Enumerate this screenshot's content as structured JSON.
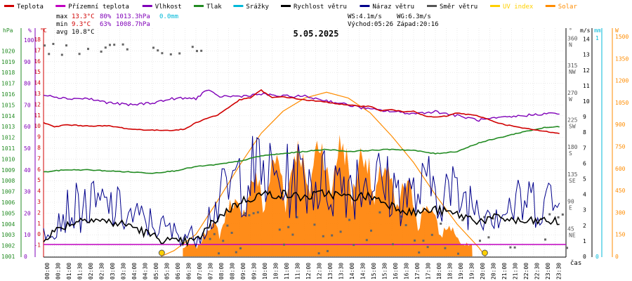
{
  "legend": [
    {
      "label": "Teplota",
      "color": "#d00000"
    },
    {
      "label": "Přízemní teplota",
      "color": "#c000c0"
    },
    {
      "label": "Vlhkost",
      "color": "#7f00b8"
    },
    {
      "label": "Tlak",
      "color": "#228b22"
    },
    {
      "label": "Srážky",
      "color": "#00b8d8"
    },
    {
      "label": "Rychlost větru",
      "color": "#000000"
    },
    {
      "label": "Náraz větru",
      "color": "#00008b"
    },
    {
      "label": "Směr větru",
      "color": "#555555"
    },
    {
      "label": "UV index",
      "color": "#ffd000"
    },
    {
      "label": "Solar",
      "color": "#ff8c00"
    }
  ],
  "stats": {
    "max_label": "max",
    "max_temp": "13.3°C",
    "max_hum": "80%",
    "max_press": "1013.3hPa",
    "precip": "0.0mm",
    "min_label": "min",
    "min_temp": "9.3°C",
    "min_hum": "63%",
    "min_press": "1008.7hPa",
    "avg_label": "avg",
    "avg_temp": "10.8°C",
    "ws": "WS:4.1m/s",
    "wg": "WG:6.3m/s",
    "sunrise": "Východ:05:26",
    "sunset": "Západ:20:16"
  },
  "date": "5.05.2025",
  "colors": {
    "temp": "#d00000",
    "ground": "#c000c0",
    "hum": "#7f00b8",
    "press": "#228b22",
    "rain": "#00b8d8",
    "wind": "#000000",
    "gust": "#00008b",
    "dir": "#555555",
    "uv": "#ffd000",
    "solar": "#ff8c00",
    "fill": "#ff8000"
  },
  "chart_data": {
    "type": "line",
    "title": "5.05.2025",
    "xlabel": "čas",
    "x_ticks": [
      "00:00",
      "00:30",
      "01:00",
      "01:30",
      "02:00",
      "02:30",
      "03:00",
      "03:30",
      "04:00",
      "04:30",
      "05:00",
      "05:30",
      "06:00",
      "06:30",
      "07:00",
      "07:30",
      "08:00",
      "08:30",
      "09:00",
      "09:30",
      "10:00",
      "10:30",
      "11:00",
      "11:30",
      "12:00",
      "12:30",
      "13:00",
      "13:30",
      "14:00",
      "14:30",
      "15:00",
      "15:30",
      "16:00",
      "16:30",
      "17:00",
      "17:30",
      "18:00",
      "18:30",
      "19:00",
      "19:30",
      "20:00",
      "20:30",
      "21:00",
      "21:30",
      "22:00",
      "22:30",
      "23:00",
      "23:30"
    ],
    "axes": {
      "hpa": {
        "unit": "hPa",
        "ticks": [
          "1020",
          "1019",
          "1018",
          "1017",
          "1016",
          "1015",
          "1014",
          "1013",
          "1012",
          "1011",
          "1010",
          "1009",
          "1008",
          "1007",
          "1006",
          "1005",
          "1004",
          "1003",
          "1002",
          "1001"
        ]
      },
      "pct": {
        "unit": "%",
        "ticks": [
          "100",
          "90",
          "80",
          "70",
          "60",
          "50",
          "40",
          "30",
          "20",
          "10",
          "0"
        ]
      },
      "degc": {
        "unit": "°C",
        "ticks": [
          "18",
          "17",
          "16",
          "15",
          "14",
          "13",
          "12",
          "11",
          "10",
          "9",
          "8",
          "7",
          "6",
          "5",
          "4",
          "3",
          "2",
          "1",
          "0",
          "-1"
        ]
      },
      "deg": {
        "unit": "°",
        "ticks": [
          "360\nN",
          "315\nNW",
          "270\nW",
          "225\nSW",
          "180\nS",
          "135\nSE",
          "90\nE",
          "45\nNE"
        ]
      },
      "ms": {
        "unit": "m/s",
        "ticks": [
          "14",
          "13",
          "12",
          "11",
          "10",
          "9",
          "8",
          "7",
          "6",
          "5",
          "4",
          "3",
          "2",
          "1",
          "0"
        ]
      },
      "mm": {
        "unit": "mm",
        "ticks": [
          "1",
          "0"
        ]
      },
      "w": {
        "unit": "W",
        "ticks": [
          "1500",
          "1350",
          "1200",
          "1050",
          "900",
          "750",
          "600",
          "450",
          "300",
          "150",
          "0"
        ]
      }
    },
    "series": [
      {
        "name": "Teplota",
        "unit": "°C",
        "x": [
          0,
          0.5,
          1,
          2,
          3,
          4,
          5,
          6,
          6.5,
          7,
          7.5,
          8,
          8.5,
          9,
          9.5,
          10,
          10.5,
          11,
          12,
          13,
          14,
          15,
          15.5,
          16,
          16.5,
          17,
          17.5,
          18,
          18.5,
          19,
          20,
          21,
          22,
          23,
          23.8
        ],
        "values": [
          10.3,
          9.9,
          10.1,
          10.0,
          10.0,
          9.7,
          9.6,
          9.6,
          9.7,
          10.3,
          10.7,
          11.0,
          11.7,
          12.4,
          12.6,
          13.3,
          12.6,
          12.7,
          12.4,
          12.2,
          11.9,
          11.8,
          11.4,
          11.5,
          11.3,
          11.4,
          10.9,
          10.8,
          10.9,
          11.2,
          10.9,
          10.2,
          9.8,
          9.5,
          9.3
        ]
      },
      {
        "name": "Vlhkost",
        "unit": "%",
        "x": [
          0,
          1,
          2,
          3,
          4,
          5,
          6,
          7,
          7.5,
          8,
          9,
          10,
          11,
          12,
          13,
          14,
          15,
          16,
          17,
          18,
          19,
          20,
          21,
          22,
          23,
          23.8
        ],
        "values": [
          75,
          73,
          73,
          71,
          70,
          71,
          73,
          73,
          77,
          74,
          74,
          75,
          74,
          74,
          72,
          70,
          68,
          67,
          66,
          67,
          65,
          63,
          64,
          65,
          66,
          66
        ]
      },
      {
        "name": "Tlak",
        "unit": "hPa",
        "x": [
          0,
          1,
          2,
          3,
          4,
          5,
          6,
          7,
          8,
          9,
          10,
          11,
          12,
          13,
          14,
          15,
          16,
          17,
          18,
          19,
          20,
          21,
          22,
          23,
          23.8
        ],
        "values": [
          1008.8,
          1009.0,
          1009.0,
          1008.9,
          1008.8,
          1008.7,
          1008.9,
          1009.3,
          1009.5,
          1009.8,
          1010.3,
          1010.5,
          1010.7,
          1010.9,
          1010.7,
          1010.8,
          1010.9,
          1010.8,
          1010.5,
          1010.7,
          1011.5,
          1012.0,
          1012.5,
          1012.9,
          1013.0
        ]
      },
      {
        "name": "Solar",
        "unit": "W",
        "x": [
          5.4,
          6,
          7,
          8,
          9,
          10,
          11,
          12,
          13,
          14,
          15,
          16,
          17,
          18,
          19,
          20,
          20.3
        ],
        "values": [
          0,
          40,
          150,
          380,
          620,
          840,
          990,
          1080,
          1120,
          1080,
          980,
          820,
          640,
          420,
          220,
          60,
          0
        ]
      },
      {
        "name": "Rychlost větru",
        "unit": "m/s",
        "x": [
          0,
          1,
          2,
          3,
          4,
          5,
          6,
          7,
          8,
          9,
          10,
          11,
          12,
          13,
          14,
          15,
          16,
          17,
          18,
          19,
          20,
          21,
          22,
          23,
          23.8
        ],
        "values": [
          1.2,
          2.0,
          2.5,
          2.2,
          2.0,
          1.3,
          0.9,
          1.0,
          2.5,
          3.5,
          4.0,
          4.0,
          3.8,
          4.1,
          3.8,
          3.9,
          3.3,
          2.8,
          3.0,
          2.7,
          2.3,
          2.5,
          2.2,
          2.3,
          2.2
        ]
      },
      {
        "name": "Náraz větru",
        "unit": "m/s",
        "x": [
          0,
          1,
          2,
          3,
          4,
          5,
          6,
          7,
          8,
          9,
          10,
          11,
          12,
          13,
          14,
          15,
          16,
          17,
          18,
          19,
          20,
          21,
          22,
          23,
          23.8
        ],
        "values": [
          2.0,
          3.5,
          3.8,
          3.8,
          3.0,
          2.5,
          1.8,
          1.5,
          4.0,
          6.0,
          6.3,
          5.5,
          6.0,
          5.5,
          5.8,
          6.0,
          5.0,
          4.5,
          5.5,
          4.5,
          4.0,
          3.5,
          4.0,
          4.5,
          3.5
        ]
      }
    ]
  }
}
